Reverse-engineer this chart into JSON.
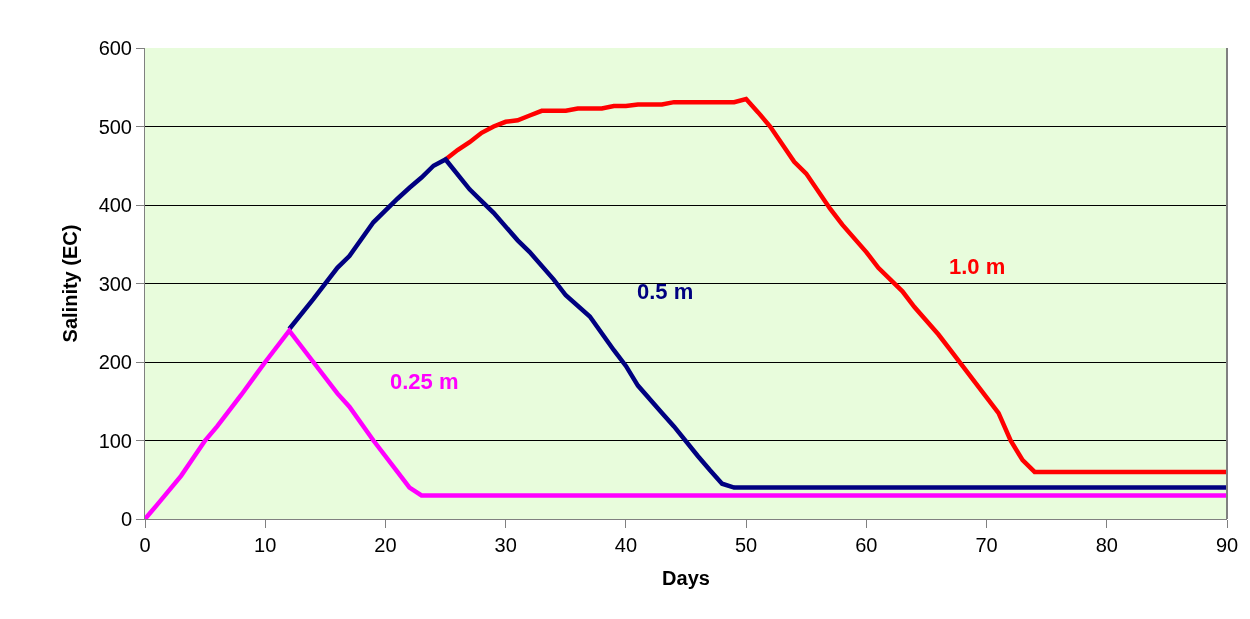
{
  "chart_data": {
    "type": "line",
    "xlabel": "Days",
    "ylabel": "Salinity (EC)",
    "xlim": [
      0,
      90
    ],
    "ylim": [
      0,
      600
    ],
    "xticks": [
      0,
      10,
      20,
      30,
      40,
      50,
      60,
      70,
      80,
      90
    ],
    "yticks": [
      0,
      100,
      200,
      300,
      400,
      500,
      600
    ],
    "grid": "y",
    "legend": false,
    "marker": "none",
    "line_style": "solid",
    "series": [
      {
        "name": "1.0 m",
        "color": "#ff0000",
        "x": [
          25,
          26,
          27,
          28,
          29,
          30,
          31,
          32,
          33,
          35,
          36,
          38,
          39,
          40,
          41,
          43,
          44,
          49,
          50,
          51,
          52,
          54,
          55,
          57,
          58,
          60,
          61,
          63,
          64,
          66,
          67,
          69,
          70,
          71,
          72,
          73,
          74,
          90
        ],
        "values": [
          458,
          470,
          480,
          492,
          500,
          506,
          508,
          514,
          520,
          520,
          523,
          523,
          526,
          526,
          528,
          528,
          531,
          531,
          535,
          518,
          500,
          455,
          440,
          395,
          375,
          340,
          320,
          290,
          270,
          235,
          215,
          175,
          155,
          135,
          100,
          75,
          60,
          60
        ]
      },
      {
        "name": "0.5 m",
        "color": "#000080",
        "x": [
          12,
          14,
          16,
          17,
          19,
          21,
          22,
          23,
          24,
          25,
          27,
          28,
          29,
          31,
          32,
          34,
          35,
          37,
          39,
          40,
          41,
          43,
          44,
          46,
          47,
          48,
          49,
          90
        ],
        "values": [
          242,
          280,
          320,
          335,
          378,
          408,
          422,
          435,
          450,
          458,
          420,
          405,
          390,
          355,
          340,
          305,
          285,
          258,
          215,
          195,
          170,
          135,
          118,
          80,
          62,
          45,
          40,
          40
        ]
      },
      {
        "name": "0.25 m",
        "color": "#ff00ff",
        "x": [
          0,
          1,
          3,
          5,
          6,
          8,
          10,
          12,
          14,
          16,
          17,
          19,
          21,
          22,
          23,
          90
        ],
        "values": [
          0,
          18,
          55,
          100,
          118,
          158,
          200,
          240,
          200,
          160,
          143,
          100,
          60,
          40,
          30,
          30
        ]
      }
    ]
  }
}
